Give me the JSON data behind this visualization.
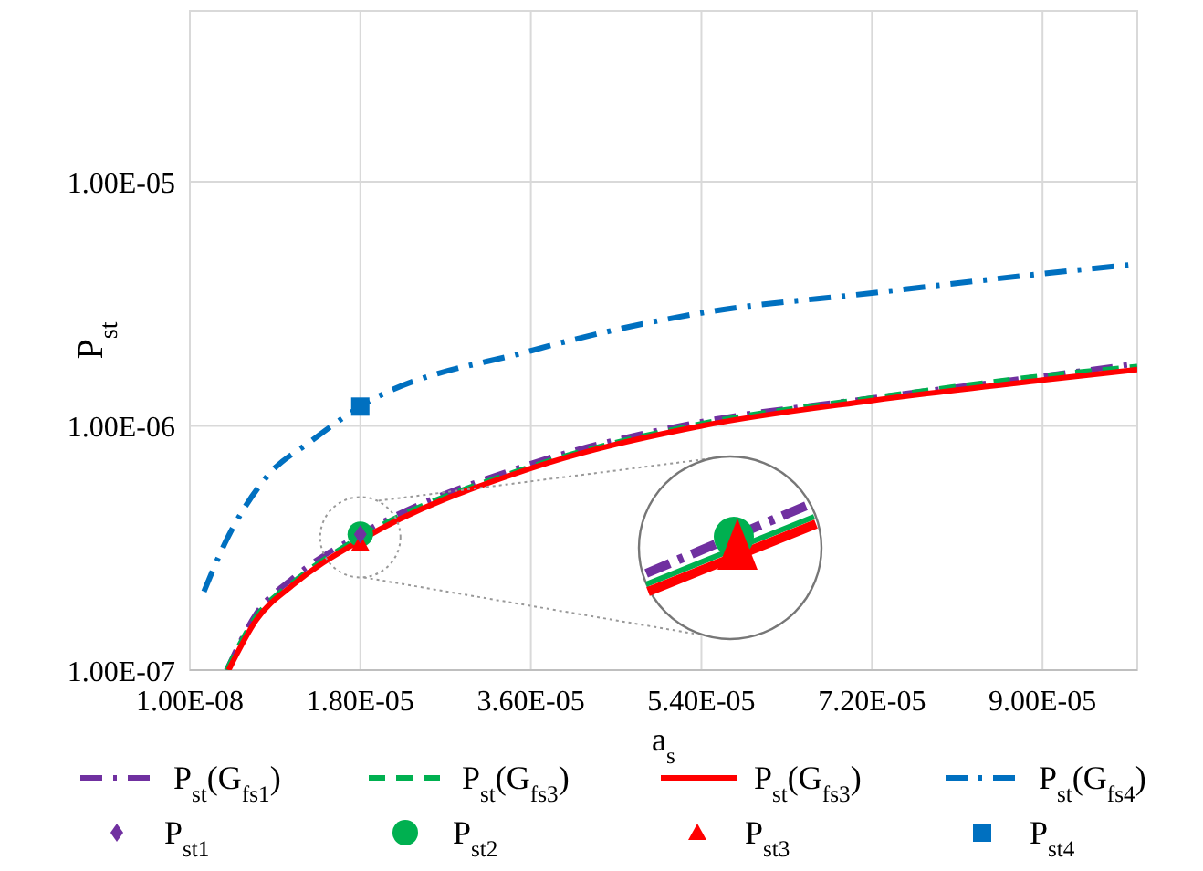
{
  "chart_data": {
    "type": "line",
    "xlabel": "a$_{s}$",
    "ylabel": "P$_{st}$",
    "log": "y",
    "grid": true,
    "legend": "bottom",
    "xlim": [
      1e-08,
      0.0001
    ],
    "xticks": [
      {
        "value": 1e-08,
        "label": "1.00E-08"
      },
      {
        "value": 1.8e-05,
        "label": "1.80E-05"
      },
      {
        "value": 3.6e-05,
        "label": "3.60E-05"
      },
      {
        "value": 5.4e-05,
        "label": "5.40E-05"
      },
      {
        "value": 7.2e-05,
        "label": "7.20E-05"
      },
      {
        "value": 9e-05,
        "label": "9.00E-05"
      }
    ],
    "ylim": [
      1e-07,
      5e-05
    ],
    "yticks": [
      {
        "value": 1e-07,
        "label": "1.00E-07"
      },
      {
        "value": 1e-06,
        "label": "1.00E-06"
      },
      {
        "value": 1e-05,
        "label": "1.00E-05"
      }
    ],
    "series": [
      {
        "name": "P$_{st}$(G$_{fs1}$)",
        "color": "#7030a0",
        "line_style": "dashdot",
        "marker": "none",
        "x": [
          3.9e-06,
          7e-06,
          1.1e-05,
          1.8e-05,
          3.6e-05,
          5.4e-05,
          7.2e-05,
          9e-05,
          0.0001
        ],
        "values": [
          1e-07,
          1.7e-07,
          2.4e-07,
          3.6e-07,
          7e-07,
          1.04e-06,
          1.3e-06,
          1.6e-06,
          1.8e-06
        ]
      },
      {
        "name": "P$_{st}$(G$_{fs3}$)",
        "color": "#00b050",
        "line_style": "dashed",
        "marker": "none",
        "x": [
          3.9e-06,
          7e-06,
          1.1e-05,
          1.8e-05,
          3.6e-05,
          5.4e-05,
          7.2e-05,
          9e-05,
          0.0001
        ],
        "values": [
          1e-07,
          1.65e-07,
          2.3e-07,
          3.5e-07,
          6.8e-07,
          1.02e-06,
          1.3e-06,
          1.6e-06,
          1.75e-06
        ]
      },
      {
        "name": "P$_{st}$(G$_{fs3}$)",
        "color": "#ff0000",
        "line_style": "solid",
        "marker": "none",
        "x": [
          4.1e-06,
          7e-06,
          1.1e-05,
          1.8e-05,
          3.6e-05,
          5.4e-05,
          7.2e-05,
          9e-05,
          0.0001
        ],
        "values": [
          1e-07,
          1.6e-07,
          2.25e-07,
          3.4e-07,
          6.7e-07,
          1e-06,
          1.27e-06,
          1.54e-06,
          1.7e-06
        ]
      },
      {
        "name": "P$_{st}$(G$_{fs4}$)",
        "color": "#0070c0",
        "line_style": "dashdot",
        "marker": "none",
        "x": [
          1.5e-06,
          3.7e-06,
          8.3e-06,
          1.27e-05,
          1.8e-05,
          3.6e-05,
          5.4e-05,
          7.2e-05,
          9e-05,
          0.0001
        ],
        "values": [
          2.1e-07,
          3.3e-07,
          6.3e-07,
          8.6e-07,
          1.2e-06,
          2.03e-06,
          2.9e-06,
          3.5e-06,
          4.2e-06,
          4.6e-06
        ]
      },
      {
        "name": "P$_{st1}$",
        "type": "scatter",
        "color": "#7030a0",
        "marker": "diamond",
        "x": [
          1.8e-05
        ],
        "values": [
          3.6e-07
        ]
      },
      {
        "name": "P$_{st2}$",
        "type": "scatter",
        "color": "#00b050",
        "marker": "circle",
        "x": [
          1.8e-05
        ],
        "values": [
          3.6e-07
        ]
      },
      {
        "name": "P$_{st3}$",
        "type": "scatter",
        "color": "#ff0000",
        "marker": "triangle",
        "x": [
          1.8e-05
        ],
        "values": [
          3.3e-07
        ]
      },
      {
        "name": "P$_{st4}$",
        "type": "scatter",
        "color": "#0070c0",
        "marker": "square",
        "x": [
          1.8e-05
        ],
        "values": [
          1.2e-06
        ]
      }
    ]
  }
}
